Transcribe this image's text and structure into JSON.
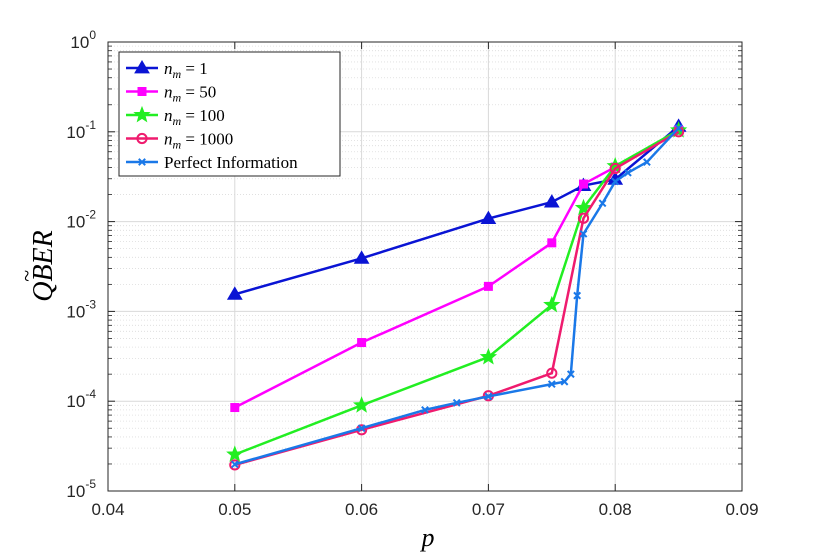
{
  "chart_data": {
    "type": "line",
    "xlabel": "p",
    "ylabel": "QBER (with tilde)",
    "xscale": "linear",
    "yscale": "log",
    "xlim": [
      0.04,
      0.09
    ],
    "ylim": [
      1e-05,
      1
    ],
    "xticks": [
      "0.04",
      "0.05",
      "0.06",
      "0.07",
      "0.08",
      "0.09"
    ],
    "xtick_values": [
      0.04,
      0.05,
      0.06,
      0.07,
      0.08,
      0.09
    ],
    "yticks": [
      {
        "base": "10",
        "exp": "-5",
        "value": 1e-05
      },
      {
        "base": "10",
        "exp": "-4",
        "value": 0.0001
      },
      {
        "base": "10",
        "exp": "-3",
        "value": 0.001
      },
      {
        "base": "10",
        "exp": "-2",
        "value": 0.01
      },
      {
        "base": "10",
        "exp": "-1",
        "value": 0.1
      },
      {
        "base": "10",
        "exp": "0",
        "value": 1
      }
    ],
    "grid": true,
    "minor_grid": true,
    "legend_position": "top-left",
    "series": [
      {
        "legend_sym": "n",
        "legend_sub": "m",
        "legend_rest": " = 1",
        "color": "#0a14d4",
        "marker": "triangle",
        "x": [
          0.05,
          0.06,
          0.07,
          0.075,
          0.0775,
          0.08,
          0.085
        ],
        "y": [
          0.00155,
          0.0039,
          0.0108,
          0.0165,
          0.0252,
          0.0295,
          0.115
        ]
      },
      {
        "legend_sym": "n",
        "legend_sub": "m",
        "legend_rest": " = 50",
        "color": "#ff00ff",
        "marker": "square",
        "x": [
          0.05,
          0.06,
          0.07,
          0.075,
          0.0775,
          0.08,
          0.085
        ],
        "y": [
          8.5e-05,
          0.00045,
          0.0019,
          0.0058,
          0.0262,
          0.0405,
          0.104
        ]
      },
      {
        "legend_sym": "n",
        "legend_sub": "m",
        "legend_rest": " = 100",
        "color": "#22ee22",
        "marker": "star",
        "x": [
          0.05,
          0.06,
          0.07,
          0.075,
          0.0775,
          0.08,
          0.085
        ],
        "y": [
          2.55e-05,
          9e-05,
          0.00031,
          0.00118,
          0.0142,
          0.0415,
          0.104
        ]
      },
      {
        "legend_sym": "n",
        "legend_sub": "m",
        "legend_rest": " = 1000",
        "color": "#ef1b6e",
        "marker": "circle",
        "x": [
          0.05,
          0.06,
          0.07,
          0.075,
          0.0775,
          0.08,
          0.085
        ],
        "y": [
          1.95e-05,
          4.8e-05,
          0.000115,
          0.000205,
          0.0109,
          0.039,
          0.1
        ]
      },
      {
        "legend_sym": "",
        "legend_sub": "",
        "legend_rest": "Perfect Information",
        "color": "#1a78e8",
        "marker": "x",
        "x": [
          0.05,
          0.06,
          0.065,
          0.0675,
          0.07,
          0.075,
          0.076,
          0.0765,
          0.077,
          0.0775,
          0.079,
          0.08,
          0.081,
          0.0825,
          0.085
        ],
        "y": [
          1.98e-05,
          5e-05,
          8e-05,
          9.6e-05,
          0.000113,
          0.000155,
          0.000165,
          0.0002,
          0.0015,
          0.0073,
          0.016,
          0.028,
          0.035,
          0.046,
          0.11
        ]
      }
    ]
  }
}
